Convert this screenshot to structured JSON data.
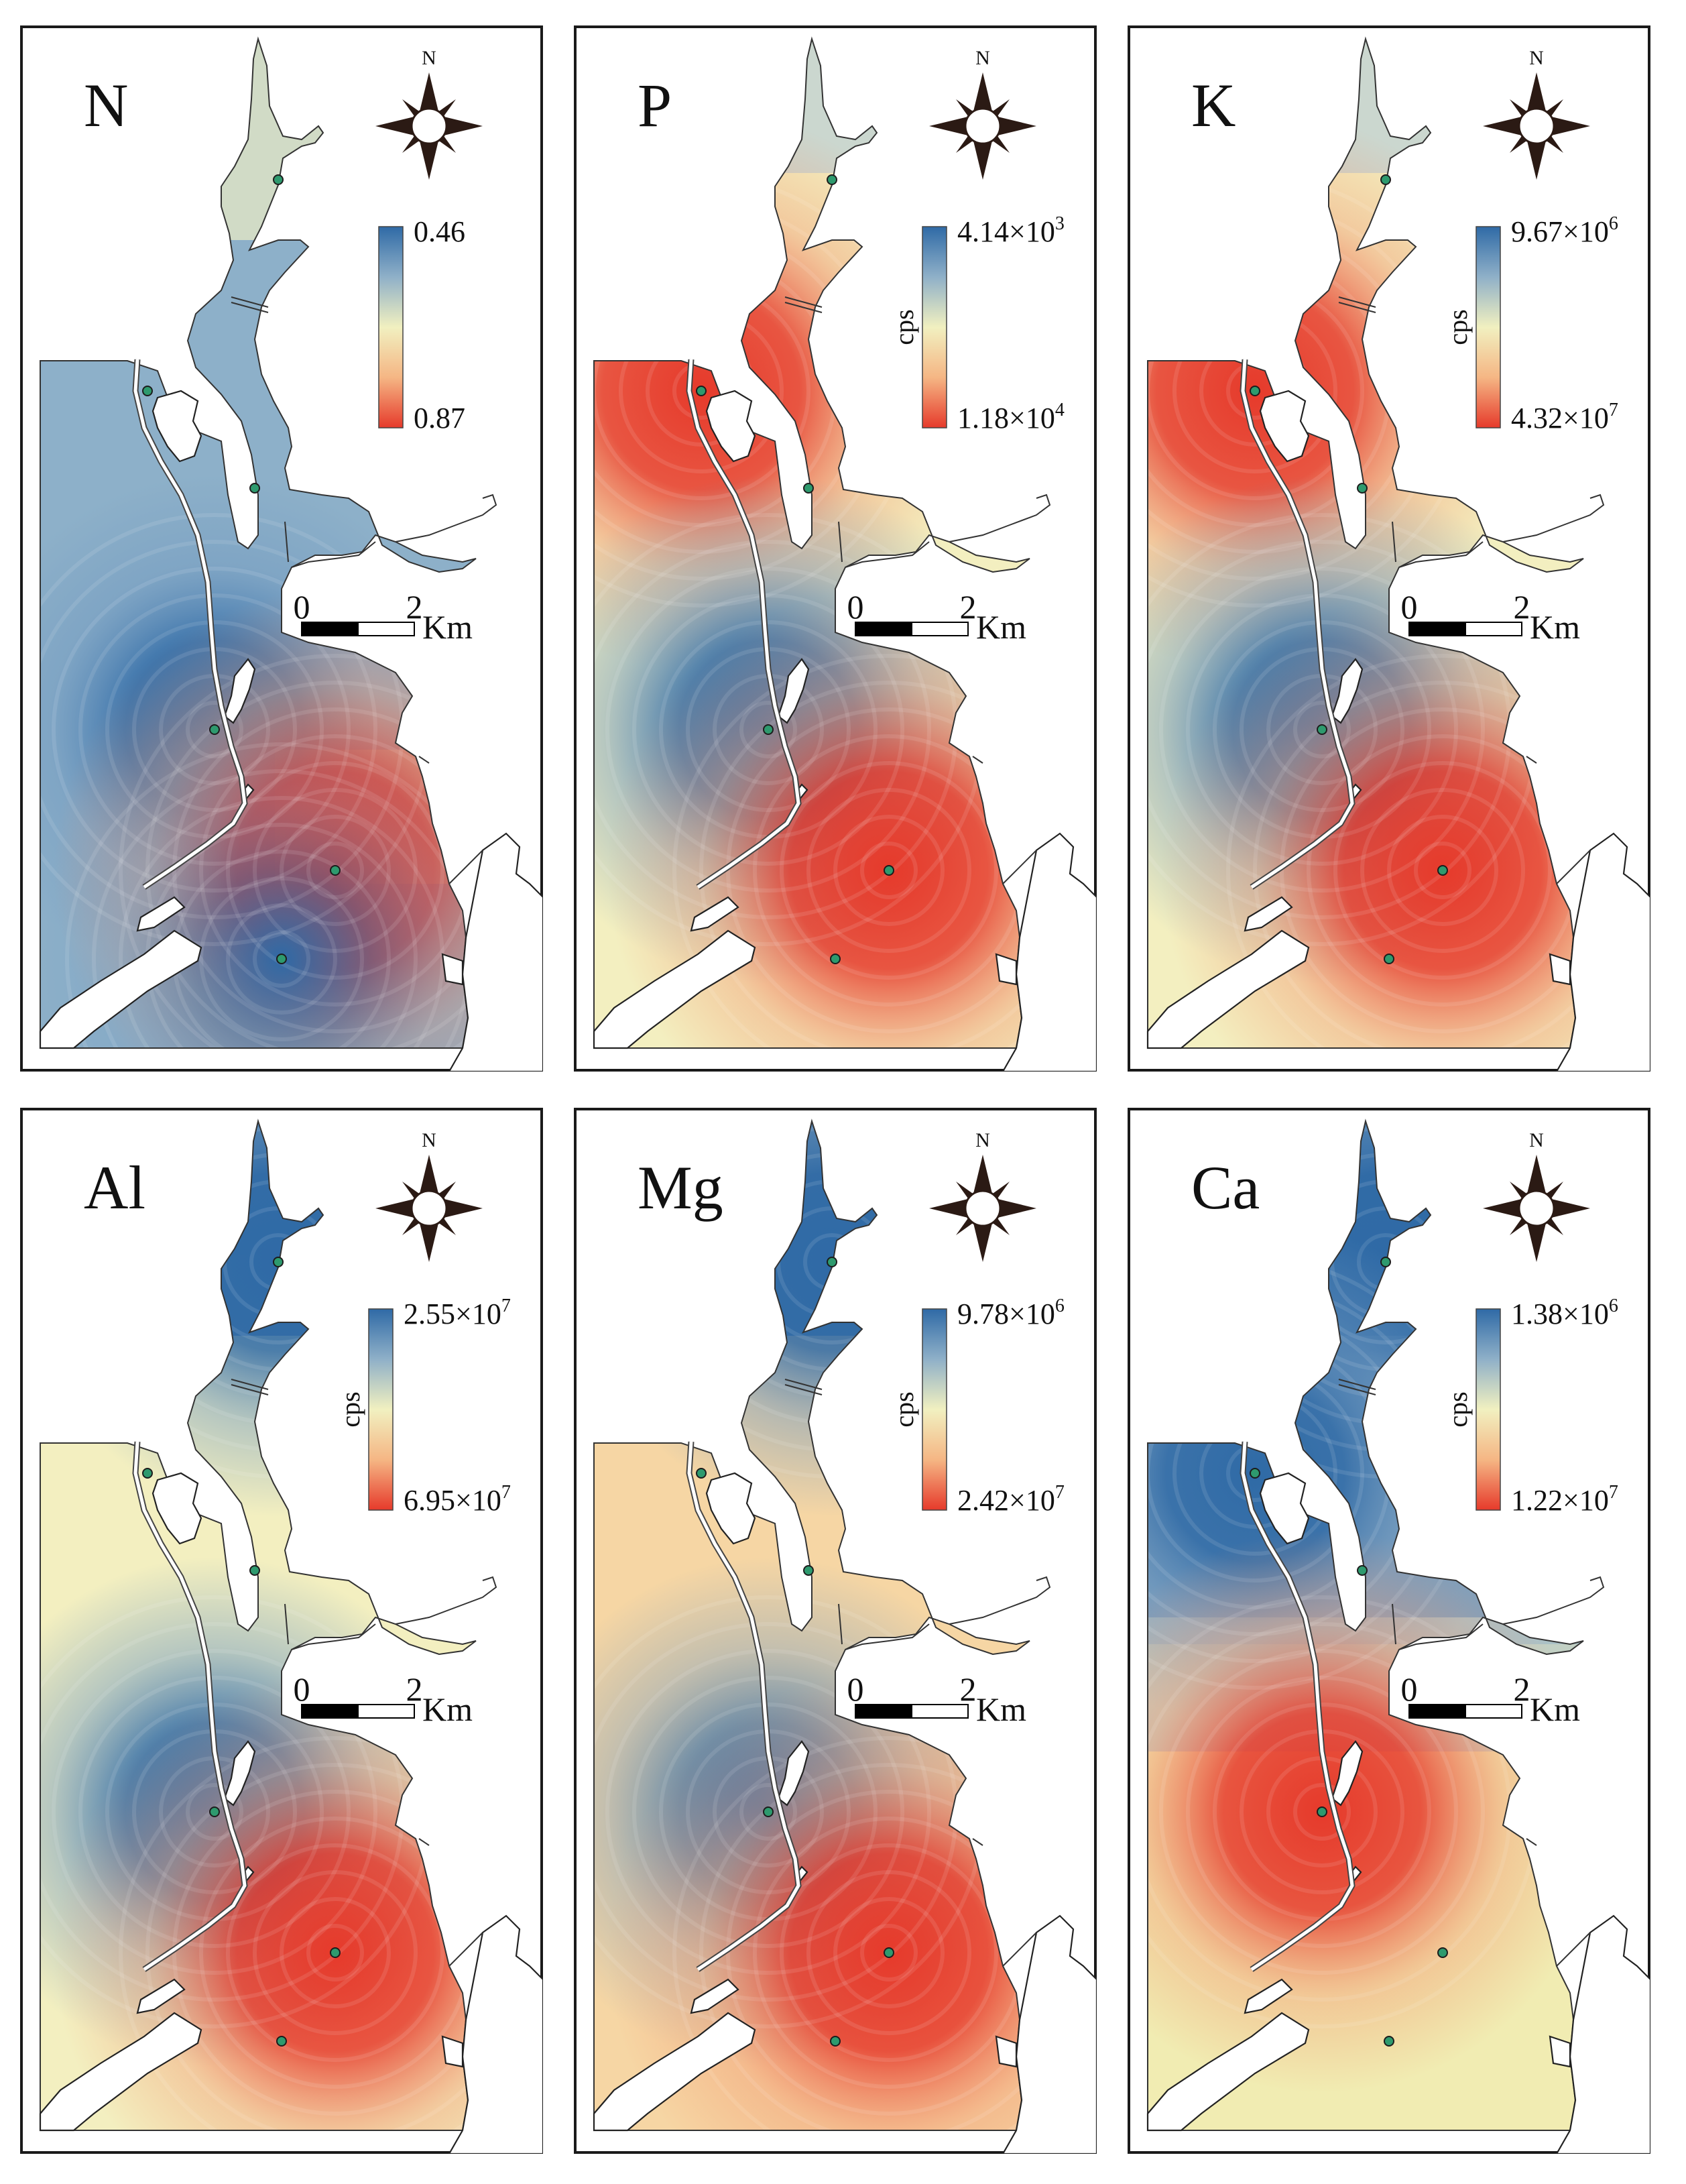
{
  "panels": [
    {
      "element": "N",
      "unit": "",
      "legend_top": "0.46",
      "legend_top_exp": "",
      "legend_bottom": "0.87",
      "legend_bottom_exp": "",
      "colors": {
        "low": "#2f6aa6",
        "high": "#e63a2b"
      },
      "hotspots": [
        {
          "type": "low",
          "site": 3,
          "strength": 1.0
        },
        {
          "type": "high",
          "site": 4,
          "strength": 1.0
        },
        {
          "type": "low",
          "site": 5,
          "strength": 0.6
        }
      ],
      "base": "low"
    },
    {
      "element": "P",
      "unit": "cps",
      "legend_top": "4.14×10",
      "legend_top_exp": "3",
      "legend_bottom": "1.18×10",
      "legend_bottom_exp": "4",
      "colors": {
        "low": "#2f6aa6",
        "high": "#e63a2b"
      },
      "hotspots": [
        {
          "type": "high",
          "site": 1,
          "strength": 1.0
        },
        {
          "type": "low",
          "site": 3,
          "strength": 1.0
        },
        {
          "type": "high",
          "site": 4,
          "strength": 1.0
        }
      ],
      "base": "mid"
    },
    {
      "element": "K",
      "unit": "cps",
      "legend_top": "9.67×10",
      "legend_top_exp": "6",
      "legend_bottom": "4.32×10",
      "legend_bottom_exp": "7",
      "colors": {
        "low": "#2f6aa6",
        "high": "#e63a2b"
      },
      "hotspots": [
        {
          "type": "high",
          "site": 1,
          "strength": 1.0
        },
        {
          "type": "low",
          "site": 3,
          "strength": 1.0
        },
        {
          "type": "high",
          "site": 4,
          "strength": 1.0
        }
      ],
      "base": "mid"
    },
    {
      "element": "Al",
      "unit": "cps",
      "legend_top": "2.55×10",
      "legend_top_exp": "7",
      "legend_bottom": "6.95×10",
      "legend_bottom_exp": "7",
      "colors": {
        "low": "#2f6aa6",
        "high": "#e63a2b"
      },
      "hotspots": [
        {
          "type": "low",
          "site": 0,
          "strength": 1.0
        },
        {
          "type": "low",
          "site": 3,
          "strength": 1.0
        },
        {
          "type": "high",
          "site": 4,
          "strength": 1.0
        }
      ],
      "base": "mid"
    },
    {
      "element": "Mg",
      "unit": "cps",
      "legend_top": "9.78×10",
      "legend_top_exp": "6",
      "legend_bottom": "2.42×10",
      "legend_bottom_exp": "7",
      "colors": {
        "low": "#2f6aa6",
        "high": "#e63a2b"
      },
      "hotspots": [
        {
          "type": "low",
          "site": 0,
          "strength": 1.0
        },
        {
          "type": "low",
          "site": 3,
          "strength": 0.8
        },
        {
          "type": "high",
          "site": 4,
          "strength": 1.0
        }
      ],
      "base": "warm"
    },
    {
      "element": "Ca",
      "unit": "cps",
      "legend_top": "1.38×10",
      "legend_top_exp": "6",
      "legend_bottom": "1.22×10",
      "legend_bottom_exp": "7",
      "colors": {
        "low": "#2f6aa6",
        "high": "#e63a2b"
      },
      "hotspots": [
        {
          "type": "low",
          "site": 0,
          "strength": 1.0
        },
        {
          "type": "low",
          "site": 1,
          "strength": 1.0
        },
        {
          "type": "high",
          "site": 3,
          "strength": 1.0
        }
      ],
      "base": "split"
    }
  ],
  "north_label": "N",
  "scale_bar": {
    "start": "0",
    "end": "2",
    "unit": "Km"
  }
}
